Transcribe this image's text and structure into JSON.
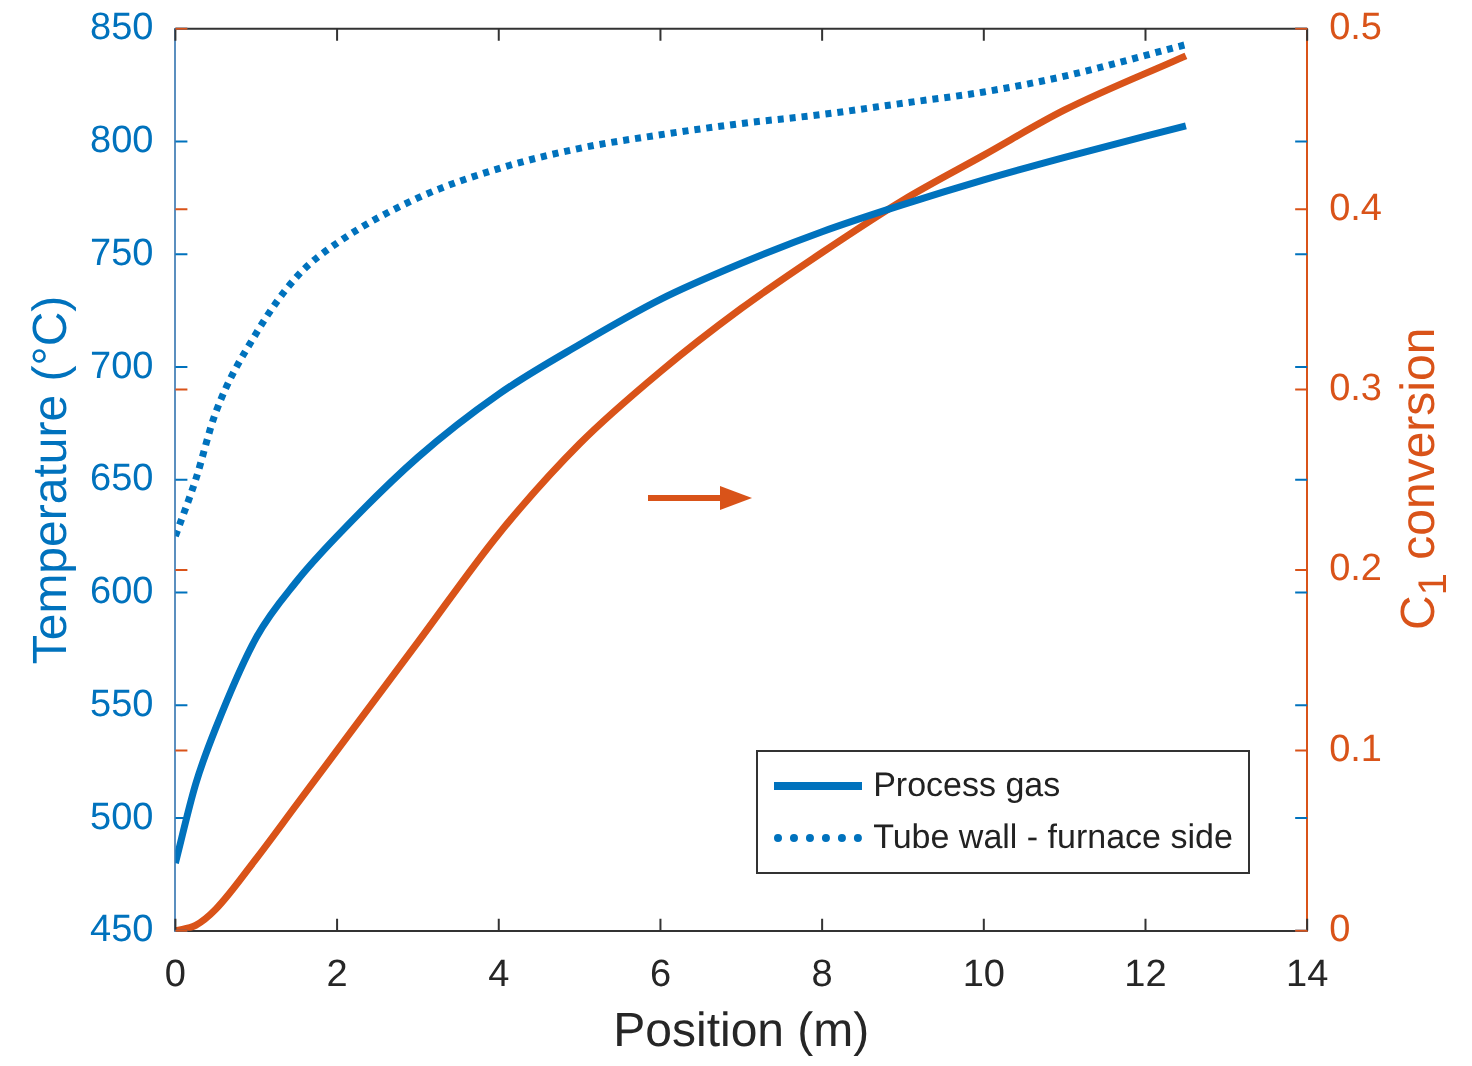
{
  "chart_data": {
    "type": "line",
    "xlabel": "Position (m)",
    "ylabel": "Temperature (°C)",
    "y2label": "C$_{1}$ conversion",
    "x": [
      0,
      0.25,
      0.5,
      1,
      1.5,
      2,
      3,
      4,
      5,
      6,
      7,
      8,
      9,
      10,
      11,
      12.5
    ],
    "series": [
      {
        "name": "Process gas",
        "color": "#0072bd",
        "values": [
          480,
          515,
          540,
          580,
          605,
          625,
          660,
          688,
          710,
          730,
          746,
          760,
          772,
          783,
          793,
          807
        ]
      },
      {
        "name": "Tube wall - furnace side",
        "color": "#0072bd",
        "line_style": "dotted",
        "values": [
          625,
          650,
          680,
          715,
          740,
          755,
          775,
          788,
          797,
          803,
          808,
          812,
          817,
          822,
          829,
          843
        ]
      },
      {
        "color": "#d95319",
        "axis": "y2",
        "values": [
          0,
          0.003,
          0.012,
          0.04,
          0.07,
          0.1,
          0.16,
          0.22,
          0.27,
          0.31,
          0.345,
          0.376,
          0.405,
          0.43,
          0.455,
          0.485
        ]
      }
    ],
    "xlim": [
      0,
      14
    ],
    "xticks": [
      0,
      2,
      4,
      6,
      8,
      10,
      12,
      14
    ],
    "ylim": [
      450,
      850
    ],
    "yticks": [
      450,
      500,
      550,
      600,
      650,
      700,
      750,
      800,
      850
    ],
    "y2lim": [
      0,
      0.5
    ],
    "y2ticks": [
      0,
      0.1,
      0.2,
      0.3,
      0.4,
      0.5
    ],
    "legend": "bottom right",
    "grid": false,
    "marker": "none"
  }
}
